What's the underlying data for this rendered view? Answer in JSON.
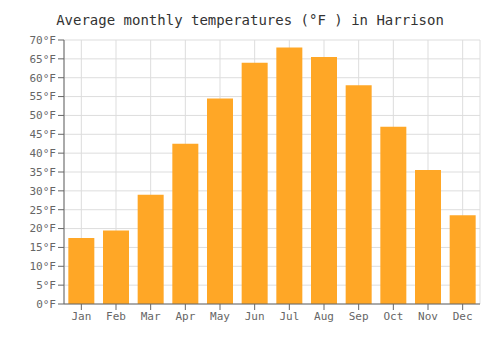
{
  "chart_data": {
    "type": "bar",
    "title": "Average monthly temperatures (°F ) in Harrison",
    "categories": [
      "Jan",
      "Feb",
      "Mar",
      "Apr",
      "May",
      "Jun",
      "Jul",
      "Aug",
      "Sep",
      "Oct",
      "Nov",
      "Dec"
    ],
    "values": [
      17.5,
      19.5,
      29.0,
      42.5,
      54.5,
      64.0,
      68.0,
      65.5,
      58.0,
      47.0,
      35.5,
      23.5
    ],
    "color": "#FFA726",
    "ylim": [
      0,
      70
    ],
    "yticks": [
      {
        "value": 0,
        "label": "0°F"
      },
      {
        "value": 5,
        "label": "5°F"
      },
      {
        "value": 10,
        "label": "10°F"
      },
      {
        "value": 15,
        "label": "15°F"
      },
      {
        "value": 20,
        "label": "20°F"
      },
      {
        "value": 25,
        "label": "25°F"
      },
      {
        "value": 30,
        "label": "30°F"
      },
      {
        "value": 35,
        "label": "35°F"
      },
      {
        "value": 40,
        "label": "40°F"
      },
      {
        "value": 45,
        "label": "45°F"
      },
      {
        "value": 50,
        "label": "50°F"
      },
      {
        "value": 55,
        "label": "55°F"
      },
      {
        "value": 60,
        "label": "60°F"
      },
      {
        "value": 65,
        "label": "65°F"
      },
      {
        "value": 70,
        "label": "70°F"
      }
    ],
    "grid": true
  }
}
